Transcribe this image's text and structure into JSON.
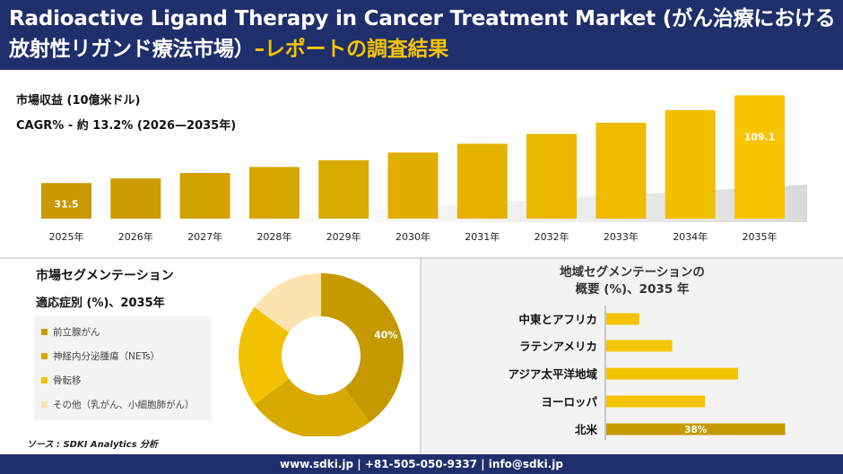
{
  "header": {
    "title_main": "Radioactive Ligand Therapy in Cancer Treatment Market (がん治療における放射性リガンド療法市場）",
    "title_accent": "–レポートの調査結果"
  },
  "kpi": {
    "revenue_label": "市場収益 (10億米ドル)",
    "cagr_label": "CAGR% - 約 13.2% (2026—2035年)"
  },
  "colors": {
    "navy": "#1f2f6b",
    "accent": "#f5c400",
    "gold_dark": "#c49a00",
    "gold_mid": "#d8aa00",
    "gold_light": "#f2c200",
    "cream": "#fde3b0"
  },
  "chart_data": [
    {
      "type": "bar",
      "title": "市場収益 (10億米ドル)",
      "categories": [
        "2025年",
        "2026年",
        "2027年",
        "2028年",
        "2029年",
        "2030年",
        "2031年",
        "2032年",
        "2033年",
        "2034年",
        "2035年"
      ],
      "values": [
        31.5,
        35.6,
        40.4,
        45.7,
        51.7,
        58.5,
        66.3,
        75.0,
        84.9,
        96.1,
        109.1
      ],
      "data_labels": {
        "0": "31.5",
        "10": "109.1"
      },
      "ylim": [
        0,
        115
      ]
    },
    {
      "type": "pie",
      "title": "市場セグメンテーション",
      "subtitle": "適応症別 (%)、2035年",
      "categories": [
        "前立腺がん",
        "神経内分泌腫瘍（NETs）",
        "骨転移",
        "その他（乳がん、小細胞肺がん）"
      ],
      "values": [
        40,
        25,
        20,
        15
      ],
      "colors": [
        "#c49a00",
        "#d8aa00",
        "#f2c200",
        "#fde3b0"
      ],
      "data_labels": {
        "0": "40%"
      }
    },
    {
      "type": "bar",
      "orientation": "horizontal",
      "title": "地域セグメンテーションの概要 (%)、2035 年",
      "categories": [
        "中東とアフリカ",
        "ラテンアメリカ",
        "アジア太平洋地域",
        "ヨーロッパ",
        "北米"
      ],
      "values": [
        7,
        14,
        28,
        21,
        38
      ],
      "data_labels": {
        "4": "38%"
      },
      "xlim": [
        0,
        40
      ]
    }
  ],
  "footer": {
    "contact": "www.sdki.jp | +81-505-050-9337 | info@sdki.jp"
  },
  "source": "ソース : SDKI Analytics 分析"
}
